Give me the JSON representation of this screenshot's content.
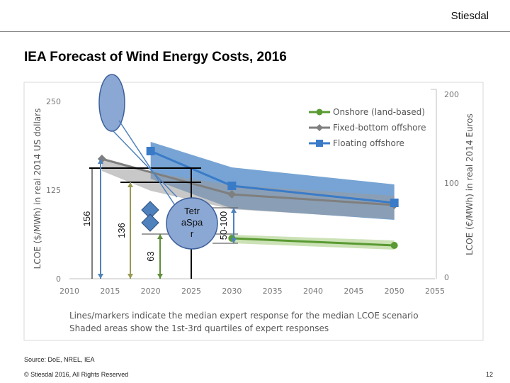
{
  "header": {
    "brand": "Stiesdal"
  },
  "slide": {
    "title": "IEA Forecast of Wind Energy Costs, 2016",
    "source": "Source: DoE, NREL, IEA",
    "copyright": "© Stiesdal 2016, All Rights Reserved",
    "page_number": "12"
  },
  "colors": {
    "onshore": "#5a9a32",
    "fixed": "#7f7f7f",
    "floating": "#3a7bc8",
    "floating_band": "#4a86c5",
    "fixed_band": "#9a9a9a",
    "onshore_band": "#c6dfae",
    "ellipse": "#8ba7d4",
    "diamond": "#4f81bd",
    "bracket_green": "#5e8f3a",
    "bracket_olive": "#9a9a52"
  },
  "chart_data": {
    "type": "line",
    "title": "",
    "xlabel": "",
    "ylabel": "LCOE ($/MWh) in real 2014 US dollars",
    "ylabel_right": "LCOE (€/MWh) in real 2014 Euros",
    "xlim": [
      2010,
      2055
    ],
    "ylim": [
      0,
      250
    ],
    "ylim_right": [
      0,
      200
    ],
    "x_ticks": [
      "2010",
      "2015",
      "2020",
      "2025",
      "2030",
      "2035",
      "2040",
      "2045",
      "2050",
      "2055"
    ],
    "y_ticks": [
      "0",
      "125",
      "250"
    ],
    "y_ticks_right": [
      "0",
      "100",
      "200"
    ],
    "series": [
      {
        "name": "Onshore (land-based)",
        "x": [
          2030,
          2050
        ],
        "values": [
          57,
          47
        ]
      },
      {
        "name": "Fixed-bottom offshore",
        "x": [
          2014,
          2030,
          2050
        ],
        "values": [
          169,
          119,
          104
        ]
      },
      {
        "name": "Floating offshore",
        "x": [
          2020,
          2030,
          2050
        ],
        "values": [
          180,
          131,
          107
        ]
      }
    ],
    "bands": [
      {
        "name": "Floating offshore",
        "x": [
          2020,
          2030,
          2050
        ],
        "low": [
          141,
          99,
          83
        ],
        "high": [
          193,
          157,
          133
        ]
      },
      {
        "name": "Fixed-bottom offshore",
        "x": [
          2014,
          2020,
          2030,
          2050
        ],
        "low": [
          152,
          124,
          98,
          84
        ],
        "high": [
          170,
          150,
          132,
          117
        ]
      },
      {
        "name": "Onshore (land-based)",
        "x": [
          2030,
          2050
        ],
        "low": [
          50,
          41
        ],
        "high": [
          62,
          54
        ]
      }
    ],
    "annotations": {
      "brackets": [
        "156",
        "136",
        "63",
        "50-100"
      ],
      "tetraspar_label": "Tetr aSpa r",
      "footnote_line1": "Lines/markers indicate the median expert response for the median LCOE scenario",
      "footnote_line2": "Shaded areas show the 1st-3rd quartiles of expert responses"
    }
  }
}
